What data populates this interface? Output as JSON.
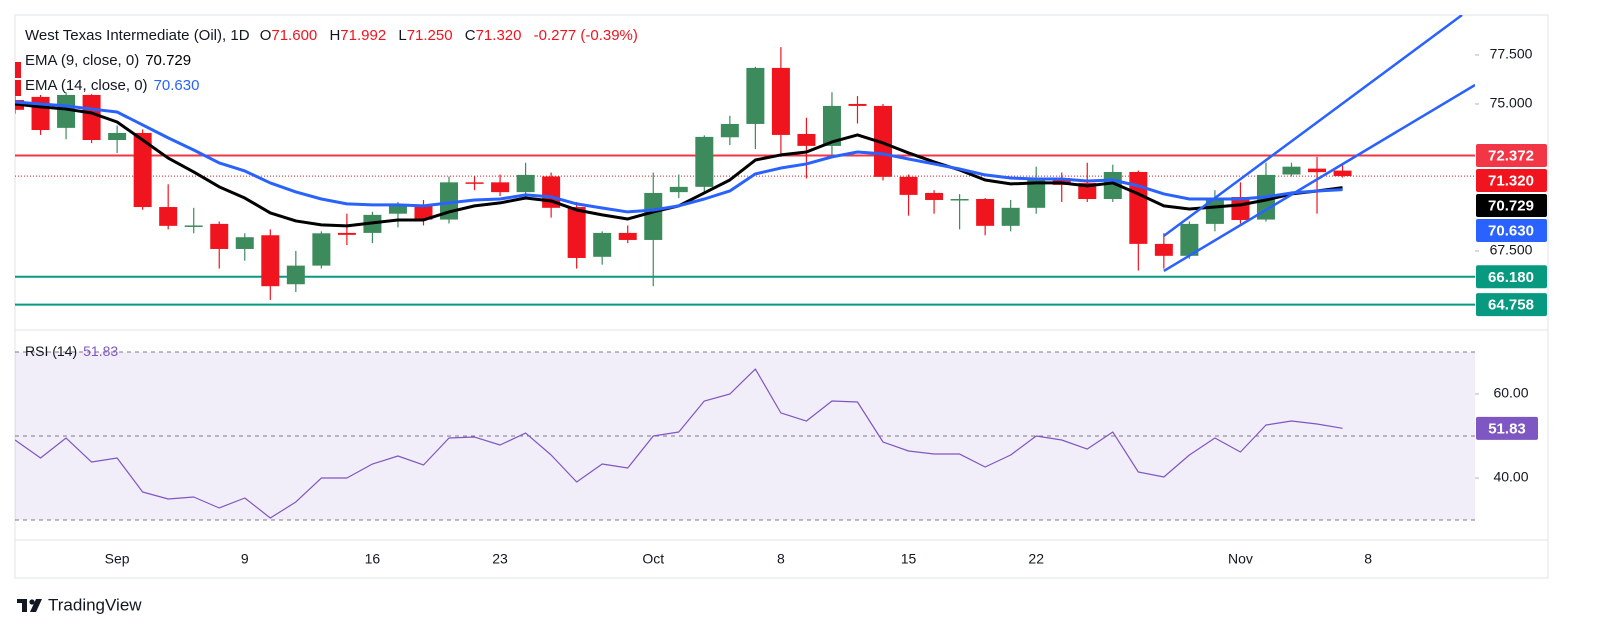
{
  "chart_data": {
    "type": "candlestick",
    "title": "West Texas Intermediate (Oil), 1D",
    "ohlc_legend": [
      {
        "key": "O",
        "text": "71.600"
      },
      {
        "key": "H",
        "text": "71.992"
      },
      {
        "key": "L",
        "text": "71.250"
      },
      {
        "key": "C",
        "text": "71.320"
      }
    ],
    "change_label": "-0.277 (-0.39%)",
    "categories": [
      null,
      null,
      null,
      null,
      "Sep",
      null,
      null,
      null,
      null,
      "9",
      null,
      null,
      null,
      null,
      "16",
      null,
      null,
      null,
      null,
      "23",
      null,
      null,
      null,
      null,
      null,
      "Oct",
      null,
      null,
      null,
      null,
      "8",
      null,
      null,
      null,
      null,
      "15",
      null,
      null,
      null,
      null,
      "22",
      null,
      null,
      null,
      null,
      null,
      null,
      null,
      "Nov",
      null,
      null,
      null,
      null,
      "8"
    ],
    "open": [
      75.2,
      75.36,
      73.78,
      75.46,
      73.16,
      73.52,
      69.74,
      68.75,
      68.88,
      67.6,
      68.3,
      65.8,
      66.75,
      68.42,
      68.42,
      69.4,
      69.85,
      69.1,
      71.0,
      71.0,
      70.5,
      71.3,
      69.74,
      67.2,
      68.42,
      68.06,
      70.5,
      70.77,
      73.3,
      73.98,
      76.84,
      73.47,
      72.86,
      75.0,
      74.9,
      71.28,
      70.46,
      70.1,
      70.15,
      68.78,
      69.7,
      71.22,
      70.97,
      70.15,
      71.53,
      67.86,
      67.25,
      68.88,
      70.25,
      69.1,
      71.4,
      71.7,
      71.6,
      null
    ],
    "high": [
      75.4,
      75.46,
      75.6,
      75.5,
      73.9,
      73.7,
      70.9,
      69.7,
      69.0,
      68.4,
      68.6,
      67.5,
      68.5,
      69.4,
      69.5,
      70.0,
      70.1,
      71.3,
      71.3,
      71.4,
      72.0,
      71.5,
      70.0,
      68.5,
      68.8,
      71.5,
      71.4,
      73.4,
      74.4,
      76.9,
      77.9,
      74.3,
      75.6,
      75.4,
      75.0,
      71.4,
      70.6,
      70.4,
      70.2,
      70.1,
      71.8,
      71.5,
      72.0,
      71.9,
      71.6,
      68.4,
      69.0,
      70.6,
      71.0,
      72.0,
      72.0,
      72.3,
      71.992,
      null
    ],
    "low": [
      74.5,
      73.42,
      73.2,
      73.0,
      72.5,
      69.6,
      68.6,
      68.4,
      66.6,
      67.0,
      65.0,
      65.4,
      66.6,
      67.8,
      67.9,
      68.7,
      68.8,
      68.9,
      70.6,
      70.3,
      70.4,
      69.2,
      66.6,
      66.8,
      67.9,
      65.7,
      70.2,
      70.5,
      72.9,
      72.7,
      72.3,
      71.2,
      72.4,
      74.0,
      71.1,
      69.3,
      69.4,
      68.6,
      68.3,
      68.5,
      69.4,
      70.0,
      70.0,
      70.0,
      66.5,
      66.6,
      67.1,
      68.5,
      68.9,
      69.0,
      71.3,
      69.4,
      71.25,
      null
    ],
    "close": [
      74.7,
      73.67,
      75.46,
      73.16,
      73.52,
      69.74,
      68.78,
      68.8,
      67.6,
      68.2,
      65.7,
      66.75,
      68.4,
      68.32,
      69.34,
      69.85,
      69.1,
      71.0,
      70.95,
      70.5,
      71.38,
      69.7,
      67.14,
      68.42,
      68.06,
      70.46,
      70.77,
      73.32,
      73.98,
      76.84,
      73.42,
      72.86,
      74.9,
      74.9,
      71.28,
      70.36,
      70.1,
      70.15,
      68.78,
      69.7,
      71.22,
      70.87,
      70.15,
      71.53,
      67.86,
      67.25,
      68.88,
      70.2,
      69.08,
      71.38,
      71.8,
      71.52,
      71.32,
      null
    ],
    "up_color": "#3d8b5c",
    "down_color": "#f0141e",
    "series": [
      {
        "name": "EMA (9, close, 0)",
        "color": "#000000",
        "value_label": "70.729",
        "values": [
          75.0,
          74.85,
          74.74,
          74.54,
          74.08,
          73.16,
          72.24,
          71.53,
          70.77,
          70.2,
          69.44,
          69.03,
          68.83,
          68.78,
          68.93,
          69.08,
          69.08,
          69.49,
          69.8,
          69.95,
          70.2,
          70.05,
          69.59,
          69.34,
          69.13,
          69.49,
          69.8,
          70.46,
          71.12,
          72.14,
          72.4,
          72.55,
          73.06,
          73.42,
          73.01,
          72.5,
          72.04,
          71.63,
          71.12,
          70.92,
          70.97,
          70.97,
          70.82,
          70.97,
          70.41,
          69.8,
          69.64,
          69.74,
          69.85,
          70.1,
          70.41,
          70.56,
          70.729,
          null
        ]
      },
      {
        "name": "EMA (14, close, 0)",
        "color": "#2962ff",
        "value_label": "70.630",
        "values": [
          75.1,
          75.0,
          74.9,
          74.74,
          74.59,
          73.93,
          73.27,
          72.65,
          71.99,
          71.58,
          70.97,
          70.51,
          70.15,
          69.9,
          69.85,
          69.85,
          69.8,
          69.95,
          70.1,
          70.15,
          70.36,
          70.26,
          69.9,
          69.69,
          69.49,
          69.59,
          69.8,
          70.15,
          70.56,
          71.43,
          71.73,
          71.94,
          72.3,
          72.55,
          72.45,
          72.19,
          71.94,
          71.68,
          71.38,
          71.22,
          71.17,
          71.17,
          71.07,
          71.12,
          70.82,
          70.41,
          70.15,
          70.15,
          70.15,
          70.26,
          70.46,
          70.56,
          70.63,
          null
        ]
      }
    ],
    "hlines": [
      {
        "value": 72.372,
        "color": "#f23645"
      },
      {
        "value": 66.18,
        "label": "66.180",
        "color": "#089981"
      },
      {
        "value": 64.758,
        "color": "#089981"
      }
    ],
    "last_price": {
      "value": 71.32,
      "label": "71.320"
    },
    "trendlines": [
      {
        "x": [
          45,
          56.68
        ],
        "y": [
          68.27,
          79.54
        ],
        "color": "#2962ff"
      },
      {
        "x": [
          45,
          57.19
        ],
        "y": [
          66.48,
          75.97
        ],
        "color": "#2962ff"
      }
    ],
    "ylim": [
      63.72,
      79.54
    ],
    "yticks": [
      {
        "value": 67.5,
        "label": "67.500"
      },
      {
        "value": 75,
        "label": "75.000"
      },
      {
        "value": 77.5,
        "label": "77.500"
      }
    ],
    "rsi": {
      "name": "RSI (14)",
      "color": "#7e57c2",
      "values": [
        49.05,
        44.76,
        49.52,
        43.81,
        44.76,
        36.67,
        35.0,
        35.48,
        32.86,
        35.24,
        30.48,
        34.29,
        40.0,
        40.0,
        43.33,
        45.24,
        43.1,
        49.52,
        49.76,
        47.86,
        50.71,
        45.48,
        39.05,
        43.33,
        42.38,
        50.0,
        50.95,
        58.33,
        60.0,
        65.95,
        55.48,
        53.57,
        58.33,
        58.1,
        48.57,
        46.43,
        45.71,
        45.71,
        42.62,
        45.48,
        50.0,
        49.05,
        46.9,
        50.95,
        41.43,
        40.24,
        45.48,
        49.52,
        46.19,
        52.62,
        53.57,
        52.86,
        51.83,
        null
      ],
      "levels": [
        70,
        50,
        30
      ],
      "ylim": [
        26.43,
        72.86
      ],
      "yticks": [
        {
          "value": 40,
          "label": "40.00"
        },
        {
          "value": 60,
          "label": "60.00"
        }
      ]
    }
  },
  "brand": "TradingView"
}
